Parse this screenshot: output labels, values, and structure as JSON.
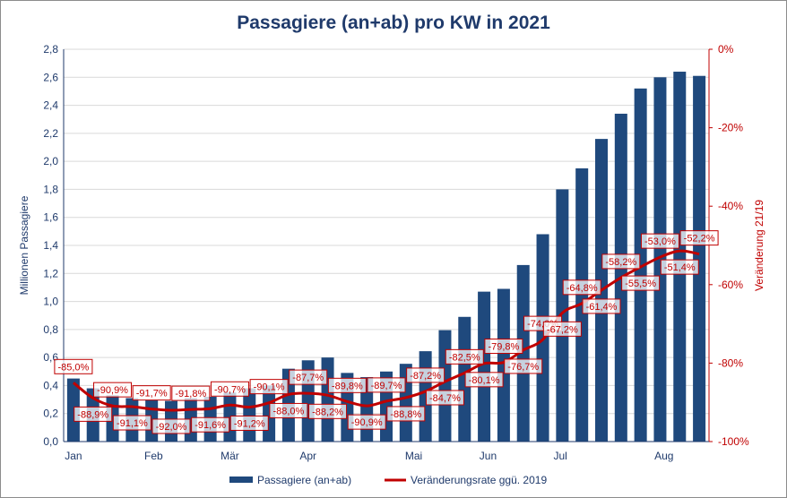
{
  "chart_data": {
    "type": "bar+line",
    "title": "Passagiere (an+ab) pro KW in 2021",
    "ylabel": "Millionen Passagiere",
    "y2label": "Veränderung 21/19",
    "ylim": [
      0,
      2.8
    ],
    "y2lim": [
      -100,
      0
    ],
    "yticks": [
      "0,0",
      "0,2",
      "0,4",
      "0,6",
      "0,8",
      "1,0",
      "1,2",
      "1,4",
      "1,6",
      "1,8",
      "2,0",
      "2,2",
      "2,4",
      "2,6",
      "2,8"
    ],
    "y2ticks": [
      "-100%",
      "-80%",
      "-60%",
      "-40%",
      "-20%",
      "0%"
    ],
    "month_ticks": [
      {
        "label": "Jan",
        "week": 1
      },
      {
        "label": "Feb",
        "week": 5.1
      },
      {
        "label": "Mär",
        "week": 9
      },
      {
        "label": "Apr",
        "week": 13
      },
      {
        "label": "Mai",
        "week": 18.4
      },
      {
        "label": "Jun",
        "week": 22.2
      },
      {
        "label": "Jul",
        "week": 25.9
      },
      {
        "label": "Aug",
        "week": 31.2
      }
    ],
    "grid": true,
    "legend": "bottom",
    "colors": {
      "bars": "#1f497d",
      "line": "#c00000",
      "text": "#1f3a6b"
    },
    "series": [
      {
        "name": "Passagiere (an+ab)",
        "type": "bar",
        "values": [
          0.45,
          0.38,
          0.33,
          0.31,
          0.3,
          0.29,
          0.31,
          0.32,
          0.35,
          0.38,
          0.4,
          0.52,
          0.58,
          0.6,
          0.49,
          0.46,
          0.5,
          0.555,
          0.645,
          0.795,
          0.89,
          1.07,
          1.09,
          1.26,
          1.48,
          1.8,
          1.95,
          2.16,
          2.34,
          2.52,
          2.6,
          2.64,
          2.61
        ]
      },
      {
        "name": "Veränderungsrate ggü. 2019",
        "type": "line",
        "axis": "right",
        "values": [
          -85.0,
          -88.9,
          -90.9,
          -91.1,
          -91.7,
          -92.0,
          -91.8,
          -91.6,
          -90.7,
          -91.2,
          -90.1,
          -88.0,
          -87.7,
          -88.2,
          -89.8,
          -90.9,
          -89.7,
          -88.8,
          -87.2,
          -84.7,
          -82.5,
          -80.1,
          -79.8,
          -76.7,
          -74.0,
          -67.2,
          -64.8,
          -61.4,
          -58.2,
          -55.5,
          -53.0,
          -51.4,
          -52.2
        ],
        "labels": [
          "-85,0%",
          "-88,9%",
          "-90,9%",
          "-91,1%",
          "-91,7%",
          "-92,0%",
          "-91,8%",
          "-91,6%",
          "-90,7%",
          "-91,2%",
          "-90,1%",
          "-88,0%",
          "-87,7%",
          "-88,2%",
          "-89,8%",
          "-90,9%",
          "-89,7%",
          "-88,8%",
          "-87,2%",
          "-84,7%",
          "-82,5%",
          "-80,1%",
          "-79,8%",
          "-76,7%",
          "-74,0%",
          "-67,2%",
          "-64,8%",
          "-61,4%",
          "-58,2%",
          "-55,5%",
          "-53,0%",
          "-51,4%",
          "-52,2%"
        ]
      }
    ]
  }
}
